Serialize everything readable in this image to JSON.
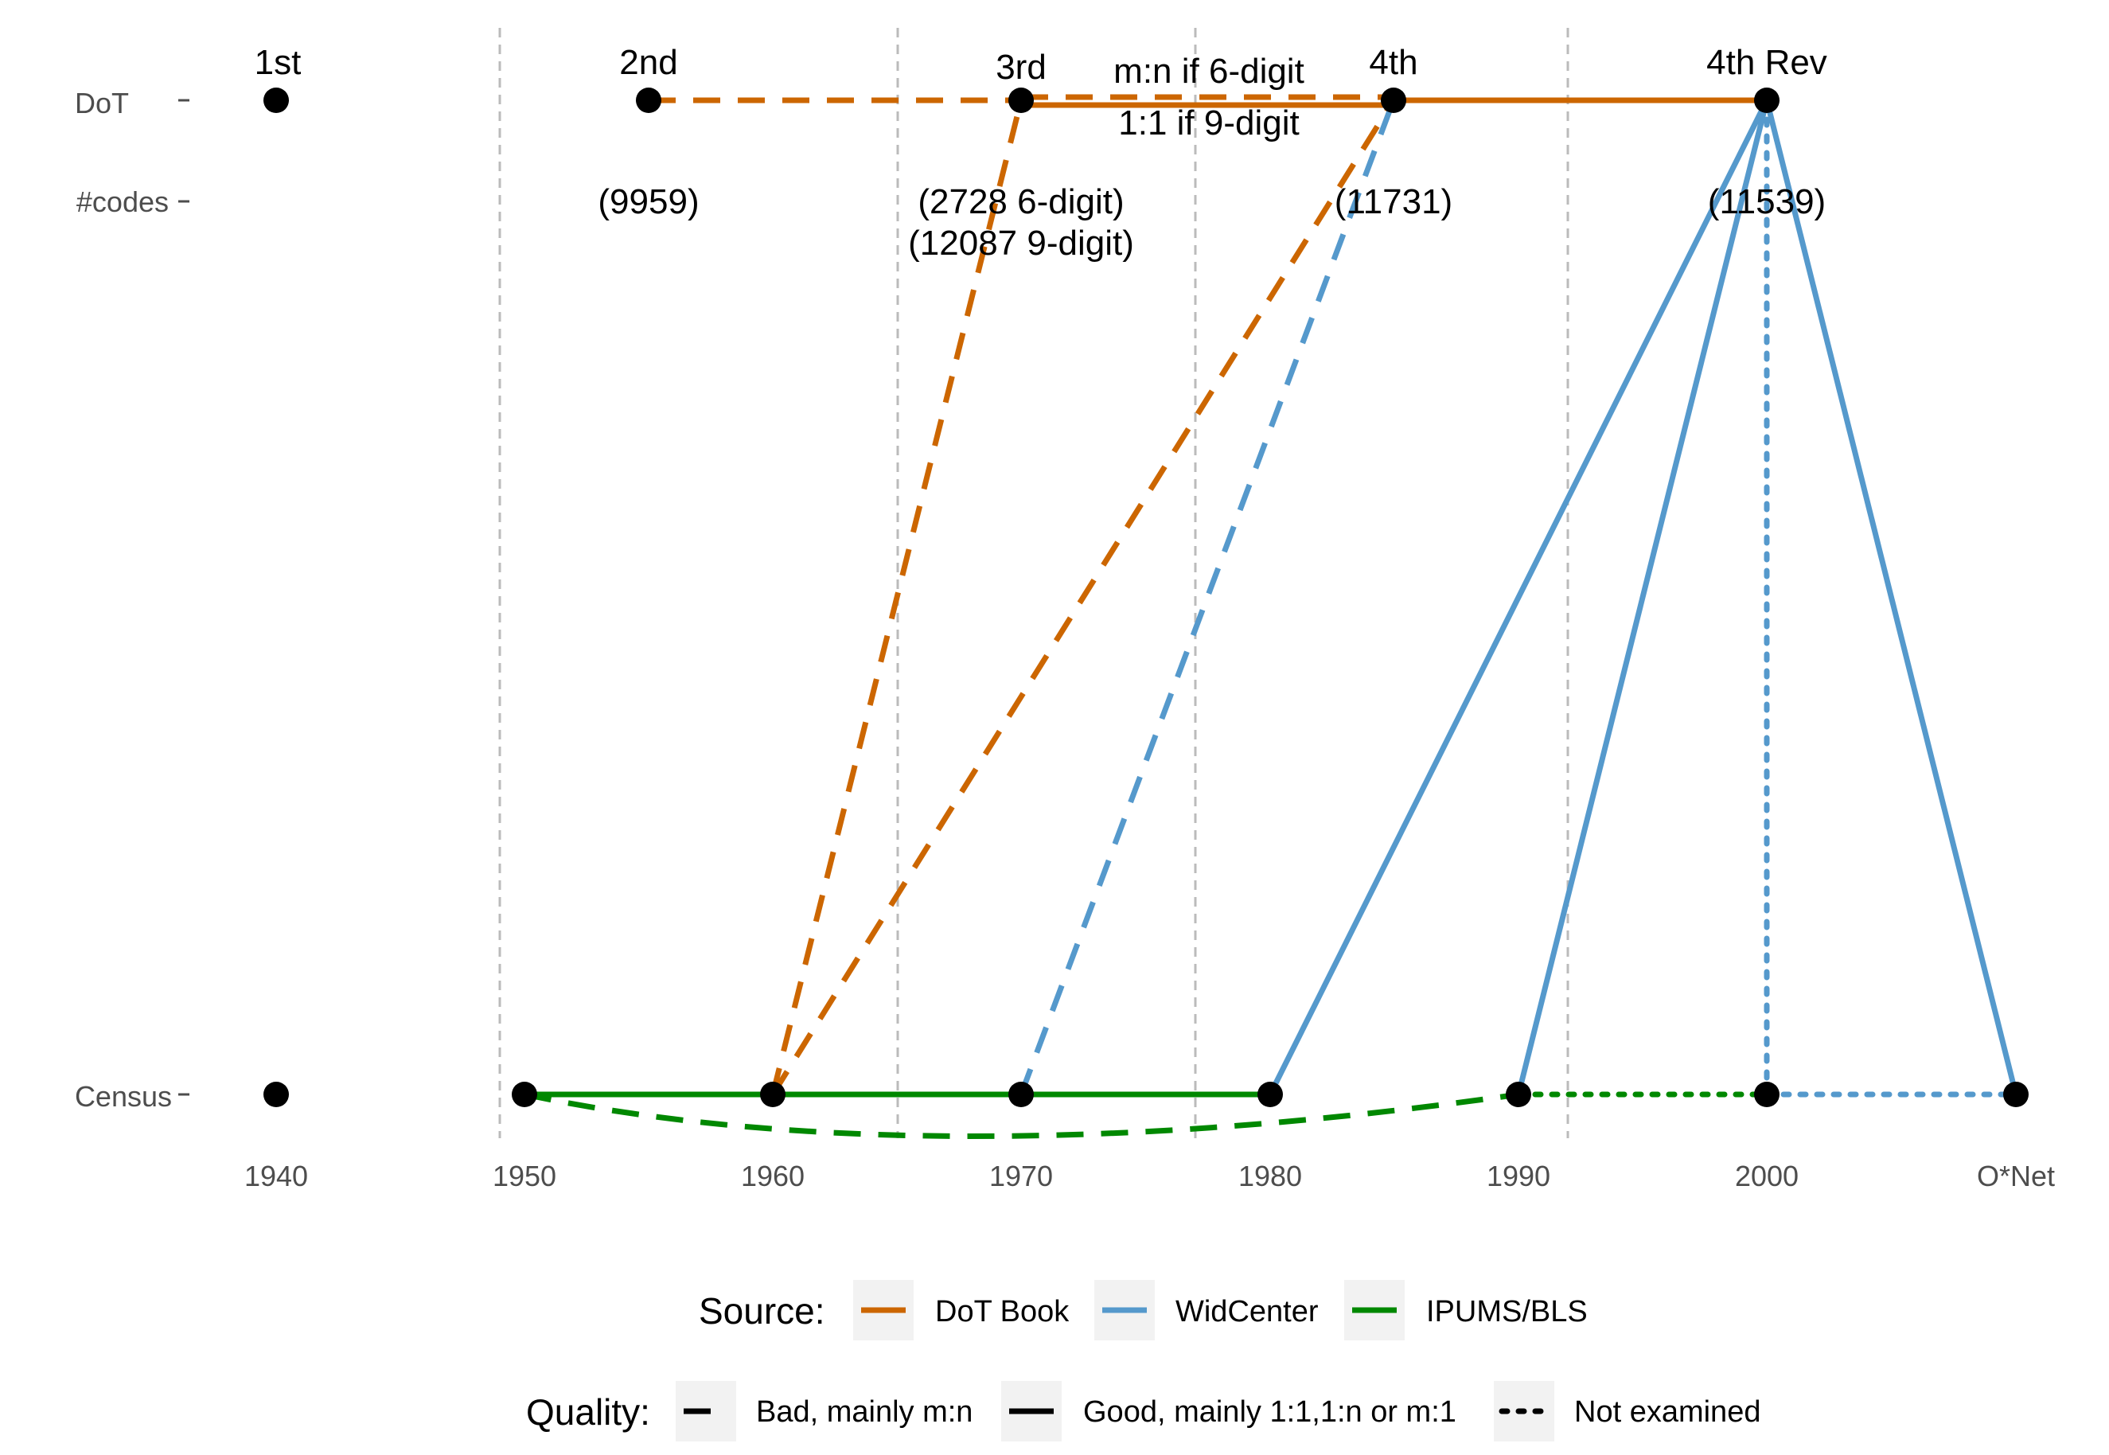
{
  "diagram": {
    "colors": {
      "dot_book": "#CC6600",
      "widcenter": "#5599CC",
      "ipums_bls": "#008800",
      "grid": "#BBBBBB",
      "point": "#000000"
    },
    "rows": {
      "dot": "DoT",
      "codes": "#codes",
      "census": "Census"
    },
    "x_ticks": [
      "1940",
      "1950",
      "1960",
      "1970",
      "1980",
      "1990",
      "2000",
      "O*Net"
    ],
    "edition_labels": [
      {
        "id": "e1",
        "text": "1st"
      },
      {
        "id": "e2",
        "text": "2nd"
      },
      {
        "id": "e3",
        "text": "3rd"
      },
      {
        "id": "e4",
        "text": "4th"
      },
      {
        "id": "e5",
        "text": "4th Rev"
      }
    ],
    "code_counts": {
      "second": "(9959)",
      "third_a": "(2728 6-digit)",
      "third_b": "(12087 9-digit)",
      "fourth": "(11731)",
      "fourth_rev": "(11539)"
    },
    "annotation": {
      "line1": "m:n if 6-digit",
      "line2": "1:1 if 9-digit"
    },
    "legend": {
      "source_title": "Source:",
      "sources": [
        "DoT Book",
        "WidCenter",
        "IPUMS/BLS"
      ],
      "quality_title": "Quality:",
      "qualities": [
        "Bad, mainly m:n",
        "Good, mainly 1:1,1:n or m:1",
        "Not examined"
      ]
    }
  }
}
